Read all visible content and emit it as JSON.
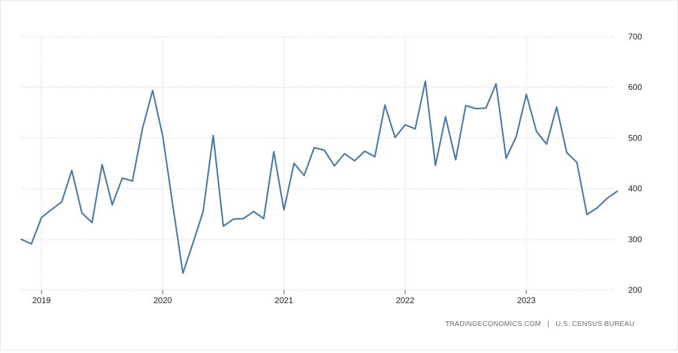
{
  "source": {
    "left": "TRADINGECONOMICS.COM",
    "separator": "|",
    "right": "U.S. CENSUS BUREAU"
  },
  "chart_data": {
    "type": "line",
    "title": "",
    "xlabel": "",
    "ylabel": "",
    "ylim": [
      200,
      700
    ],
    "yticks": [
      200,
      300,
      400,
      500,
      600,
      700
    ],
    "xticks": [
      "2019",
      "2020",
      "2021",
      "2022",
      "2023"
    ],
    "grid": true,
    "line_color": "#4a78a8",
    "series": [
      {
        "x": [
          "2018-11",
          "2018-12",
          "2019-01",
          "2019-02",
          "2019-03",
          "2019-04",
          "2019-05",
          "2019-06",
          "2019-07",
          "2019-08",
          "2019-09",
          "2019-10",
          "2019-11",
          "2019-12",
          "2020-01",
          "2020-02",
          "2020-03",
          "2020-04",
          "2020-05",
          "2020-06",
          "2020-07",
          "2020-08",
          "2020-09",
          "2020-10",
          "2020-11",
          "2020-12",
          "2021-01",
          "2021-02",
          "2021-03",
          "2021-04",
          "2021-05",
          "2021-06",
          "2021-07",
          "2021-08",
          "2021-09",
          "2021-10",
          "2021-11",
          "2021-12",
          "2022-01",
          "2022-02",
          "2022-03",
          "2022-04",
          "2022-05",
          "2022-06",
          "2022-07",
          "2022-08",
          "2022-09",
          "2022-10",
          "2022-11",
          "2022-12",
          "2023-01",
          "2023-02",
          "2023-03",
          "2023-04",
          "2023-05",
          "2023-06",
          "2023-07",
          "2023-08",
          "2023-09",
          "2023-10"
        ],
        "values": [
          300,
          291,
          343,
          359,
          374,
          436,
          352,
          333,
          448,
          368,
          421,
          415,
          519,
          594,
          504,
          367,
          233,
          293,
          355,
          505,
          326,
          340,
          341,
          355,
          341,
          473,
          358,
          450,
          426,
          481,
          476,
          445,
          469,
          455,
          474,
          463,
          565,
          501,
          526,
          518,
          612,
          446,
          542,
          457,
          564,
          558,
          559,
          607,
          460,
          503,
          586,
          513,
          488,
          561,
          471,
          452,
          349,
          362,
          381,
          395
        ]
      }
    ]
  }
}
